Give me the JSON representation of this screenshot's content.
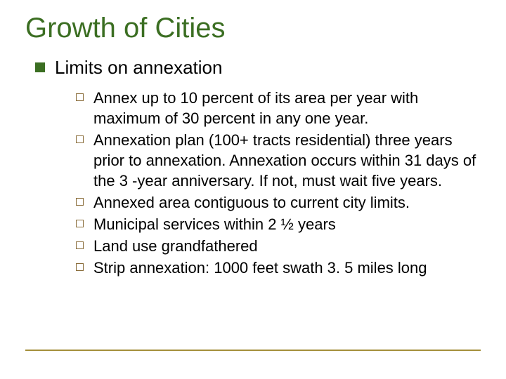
{
  "slide": {
    "title": "Growth of Cities",
    "title_color": "#3b6e22",
    "title_fontsize": 40,
    "background_color": "#ffffff",
    "divider_color": "#a48f3a",
    "level1_bullet_color": "#3b6e22",
    "level2_bullet_border_color": "#8a6d3b",
    "heading": "Limits on annexation",
    "heading_fontsize": 26,
    "items_fontsize": 22,
    "items": [
      "Annex up to 10 percent of its area per year with maximum of 30 percent in any one year.",
      "Annexation plan (100+ tracts residential) three years prior to annexation.  Annexation occurs within 31 days of the 3 -year anniversary.  If not, must wait five years.",
      "Annexed area contiguous to current city limits.",
      "Municipal services within 2 ½ years",
      "Land use grandfathered",
      "Strip annexation: 1000 feet swath 3. 5 miles long"
    ]
  }
}
